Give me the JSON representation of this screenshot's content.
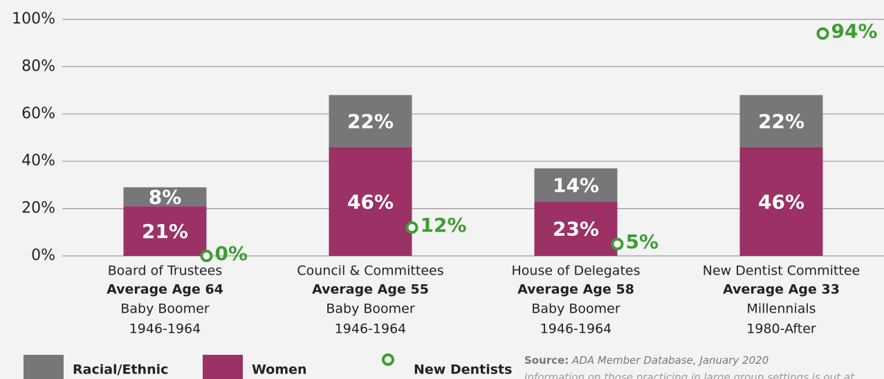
{
  "chart_data": {
    "type": "bar",
    "stacked": true,
    "categories": [
      "Board of Trustees",
      "Council & Committees",
      "House of Delegates",
      "New Dentist Committee"
    ],
    "average_age": [
      "Average Age 64",
      "Average Age 55",
      "Average Age 58",
      "Average Age 33"
    ],
    "generation": [
      "Baby Boomer",
      "Baby Boomer",
      "Baby Boomer",
      "Millennials"
    ],
    "years": [
      "1946-1964",
      "1946-1964",
      "1946-1964",
      "1980-After"
    ],
    "series": [
      {
        "name": "Women",
        "color": "#9b3165",
        "values": [
          21,
          46,
          23,
          46
        ],
        "value_labels": [
          "21%",
          "46%",
          "23%",
          "46%"
        ]
      },
      {
        "name": "Racial/Ethnic",
        "color": "#77777a",
        "values": [
          8,
          22,
          14,
          22
        ],
        "value_labels": [
          "8%",
          "22%",
          "14%",
          "22%"
        ]
      },
      {
        "name": "New Dentists",
        "type": "scatter",
        "color": "#3f9c35",
        "values": [
          0,
          12,
          5,
          94
        ],
        "value_labels": [
          "0%",
          "12%",
          "5%",
          "94%"
        ]
      }
    ],
    "ylim": [
      0,
      100
    ],
    "yticks": [
      {
        "value": 0,
        "label": "0%"
      },
      {
        "value": 20,
        "label": "20%"
      },
      {
        "value": 40,
        "label": "40%"
      },
      {
        "value": 60,
        "label": "60%"
      },
      {
        "value": 80,
        "label": "80%"
      },
      {
        "value": 100,
        "label": "100%"
      }
    ],
    "grid": true,
    "legend": "bottom",
    "legend_order": [
      1,
      0,
      2
    ],
    "source_label": "Source:",
    "source": "ADA Member Database, January 2020",
    "note": "Information on those practicing in large group settings is out at"
  }
}
